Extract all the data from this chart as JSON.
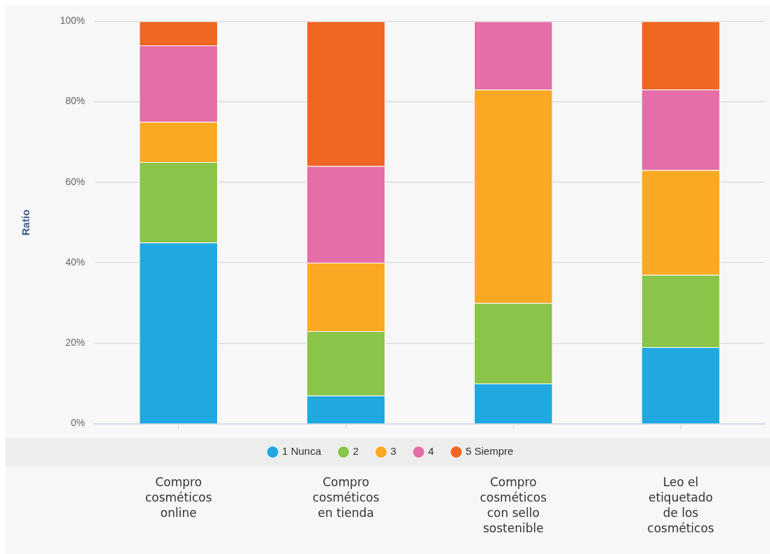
{
  "chart_data": {
    "type": "bar",
    "stacked": true,
    "ylabel": "Ratio",
    "categories": [
      "Compro cosméticos online",
      "Compro cosméticos en tienda",
      "Compro cosméticos con sello sostenible",
      "Leo el etiquetado de los cosméticos"
    ],
    "series": [
      {
        "name": "1 Nunca",
        "color": "#20a8e0",
        "values": [
          45,
          7,
          10,
          19
        ]
      },
      {
        "name": "2",
        "color": "#8ac449",
        "values": [
          20,
          16,
          20,
          18
        ]
      },
      {
        "name": "3",
        "color": "#fba923",
        "values": [
          10,
          17,
          53,
          26
        ]
      },
      {
        "name": "4",
        "color": "#e56ea9",
        "values": [
          19,
          24,
          17,
          20
        ]
      },
      {
        "name": "5 Siempre",
        "color": "#f06623",
        "values": [
          6,
          36,
          0,
          17
        ]
      }
    ],
    "ylim": [
      0,
      100
    ],
    "yticks": [
      {
        "value": 0,
        "label": "0%"
      },
      {
        "value": 20,
        "label": "20%"
      },
      {
        "value": 40,
        "label": "40%"
      },
      {
        "value": 60,
        "label": "60%"
      },
      {
        "value": 80,
        "label": "80%"
      },
      {
        "value": 100,
        "label": "100%"
      }
    ],
    "grid": "y",
    "legend": "bottom"
  }
}
